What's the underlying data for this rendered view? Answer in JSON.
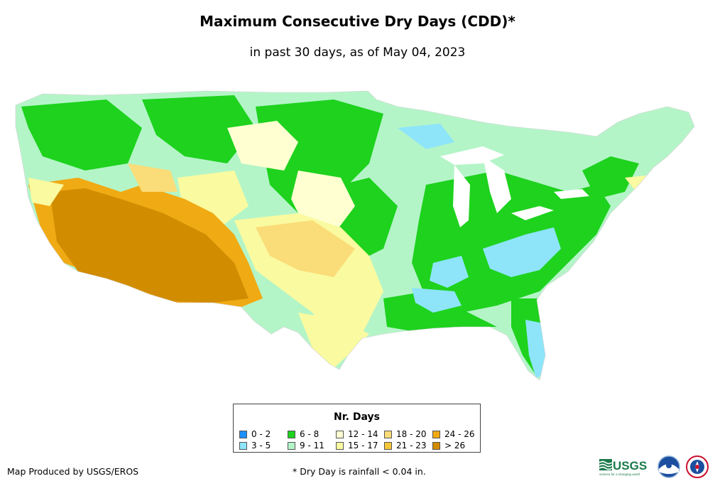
{
  "title": "Maximum Consecutive Dry Days (CDD)*",
  "subtitle": "in past 30 days, as of May 04, 2023",
  "legend": {
    "title": "Nr. Days",
    "items": [
      {
        "label": "0 - 2",
        "color": "#1e90ff"
      },
      {
        "label": "3 - 5",
        "color": "#8ee5fa"
      },
      {
        "label": "6 - 8",
        "color": "#1ed21e"
      },
      {
        "label": "9 - 11",
        "color": "#b4f5c8"
      },
      {
        "label": "12 - 14",
        "color": "#ffffd2"
      },
      {
        "label": "15 - 17",
        "color": "#fafaa0"
      },
      {
        "label": "18 - 20",
        "color": "#fadc78"
      },
      {
        "label": "21 - 23",
        "color": "#f5c83c"
      },
      {
        "label": "24 - 26",
        "color": "#f0aa14"
      },
      {
        "label": "> 26",
        "color": "#d28c00"
      }
    ]
  },
  "credit": "Map Produced by USGS/EROS",
  "footnote": "* Dry Day is rainfall < 0.04 in.",
  "logos": {
    "usgs": "USGS",
    "usgs_tagline": "science for a changing world",
    "noaa": "noaa"
  }
}
